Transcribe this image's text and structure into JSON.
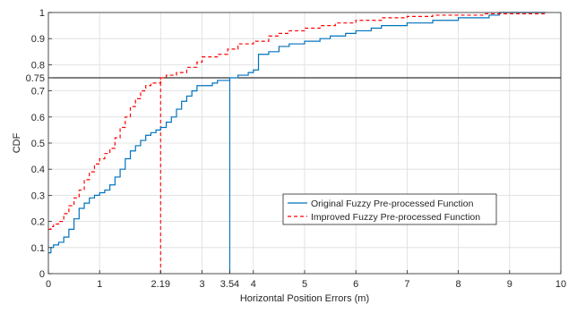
{
  "chart_data": {
    "type": "line",
    "title": "",
    "xlabel": "Horizontal Position Errors (m)",
    "ylabel": "CDF",
    "xlim": [
      0,
      10
    ],
    "ylim": [
      0,
      1
    ],
    "x_ticks": [
      0,
      1,
      2.19,
      3,
      3.54,
      4,
      5,
      6,
      7,
      8,
      9,
      10
    ],
    "x_tick_labels": [
      "0",
      "1",
      "2.19",
      "3",
      "3.54",
      "4",
      "5",
      "6",
      "7",
      "8",
      "9",
      "10"
    ],
    "y_ticks": [
      0,
      0.1,
      0.2,
      0.3,
      0.4,
      0.5,
      0.6,
      0.7,
      0.75,
      0.8,
      0.9,
      1
    ],
    "y_tick_labels": [
      "0",
      "0.1",
      "0.2",
      "0.3",
      "0.4",
      "0.5",
      "0.6",
      "0.7",
      "0.75",
      "0.8",
      "0.9",
      "1"
    ],
    "grid": true,
    "legend_position": "center-right",
    "reference_lines": [
      {
        "orientation": "horizontal",
        "y": 0.75,
        "x_range": [
          0,
          10
        ],
        "color": "#000000",
        "style": "solid"
      },
      {
        "orientation": "vertical",
        "x": 2.19,
        "y_range": [
          0,
          0.75
        ],
        "color": "#ff0000",
        "style": "dashed"
      },
      {
        "orientation": "vertical",
        "x": 3.54,
        "y_range": [
          0,
          0.75
        ],
        "color": "#0072bd",
        "style": "solid"
      }
    ],
    "series": [
      {
        "name": "Original Fuzzy Pre-processed Function",
        "color": "#0072bd",
        "style": "solid",
        "x": [
          0,
          0.05,
          0.1,
          0.2,
          0.3,
          0.4,
          0.5,
          0.6,
          0.7,
          0.8,
          0.9,
          1.0,
          1.1,
          1.2,
          1.3,
          1.4,
          1.5,
          1.6,
          1.7,
          1.8,
          1.9,
          2.0,
          2.1,
          2.19,
          2.3,
          2.4,
          2.5,
          2.6,
          2.7,
          2.8,
          2.9,
          3.0,
          3.1,
          3.2,
          3.3,
          3.54,
          3.7,
          3.8,
          3.9,
          4.0,
          4.1,
          4.3,
          4.5,
          4.7,
          5.0,
          5.3,
          5.5,
          5.8,
          6.0,
          6.3,
          6.5,
          6.8,
          7.0,
          7.3,
          7.5,
          7.8,
          8.0,
          8.3,
          8.6,
          8.8,
          9.7
        ],
        "y": [
          0.08,
          0.1,
          0.11,
          0.12,
          0.14,
          0.17,
          0.21,
          0.25,
          0.27,
          0.29,
          0.3,
          0.31,
          0.32,
          0.34,
          0.37,
          0.4,
          0.44,
          0.47,
          0.49,
          0.51,
          0.53,
          0.54,
          0.55,
          0.56,
          0.58,
          0.6,
          0.63,
          0.66,
          0.68,
          0.7,
          0.72,
          0.72,
          0.72,
          0.73,
          0.74,
          0.75,
          0.76,
          0.76,
          0.77,
          0.78,
          0.84,
          0.85,
          0.87,
          0.88,
          0.89,
          0.9,
          0.91,
          0.92,
          0.93,
          0.94,
          0.95,
          0.95,
          0.96,
          0.96,
          0.97,
          0.97,
          0.98,
          0.98,
          0.99,
          1.0,
          1.0
        ]
      },
      {
        "name": "Improved Fuzzy Pre-processed Function",
        "color": "#ff0000",
        "style": "dashed",
        "x": [
          0,
          0.05,
          0.1,
          0.2,
          0.3,
          0.4,
          0.5,
          0.6,
          0.7,
          0.8,
          0.9,
          1.0,
          1.1,
          1.2,
          1.3,
          1.4,
          1.5,
          1.6,
          1.7,
          1.8,
          1.9,
          2.0,
          2.19,
          2.3,
          2.5,
          2.7,
          2.9,
          3.0,
          3.1,
          3.3,
          3.5,
          3.7,
          4.0,
          4.3,
          4.5,
          4.7,
          5.0,
          5.3,
          5.6,
          6.0,
          6.5,
          7.0,
          7.5,
          8.0,
          8.5,
          9.0,
          9.7
        ],
        "y": [
          0.17,
          0.18,
          0.19,
          0.2,
          0.23,
          0.26,
          0.29,
          0.32,
          0.36,
          0.39,
          0.42,
          0.44,
          0.46,
          0.48,
          0.52,
          0.56,
          0.6,
          0.64,
          0.67,
          0.7,
          0.72,
          0.73,
          0.75,
          0.76,
          0.77,
          0.79,
          0.81,
          0.83,
          0.83,
          0.84,
          0.86,
          0.88,
          0.89,
          0.91,
          0.92,
          0.93,
          0.94,
          0.95,
          0.96,
          0.97,
          0.98,
          0.985,
          0.99,
          0.99,
          0.995,
          0.995,
          0.995
        ]
      }
    ]
  }
}
